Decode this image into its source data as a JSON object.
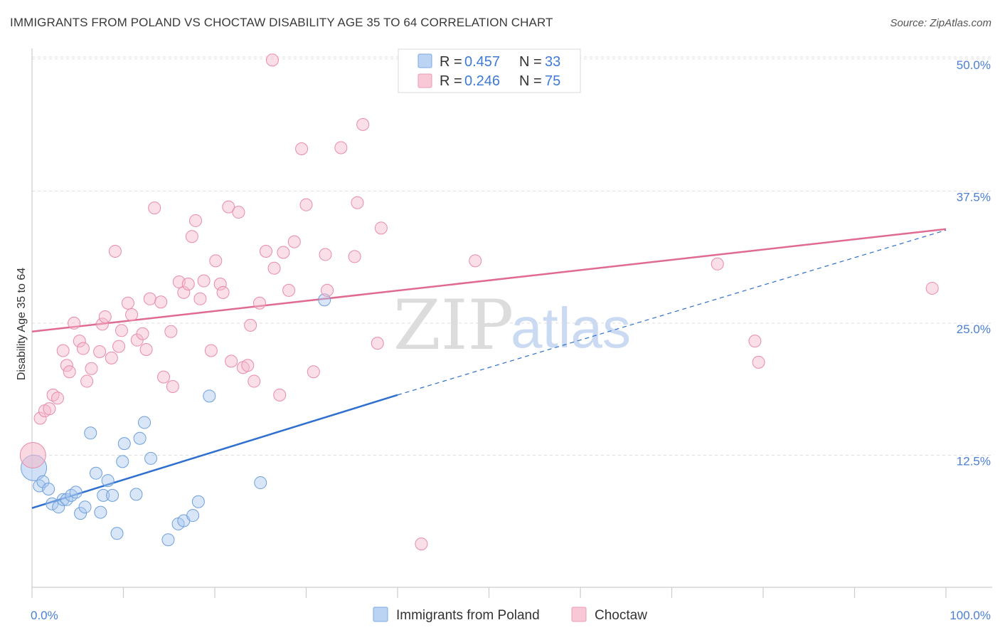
{
  "header": {
    "title": "IMMIGRANTS FROM POLAND VS CHOCTAW DISABILITY AGE 35 TO 64 CORRELATION CHART",
    "source": "Source: ZipAtlas.com"
  },
  "legend_top": {
    "rows": [
      {
        "r_label": "R =",
        "r_value": "0.457",
        "n_label": "N =",
        "n_value": "33",
        "color": "#a9c8f0"
      },
      {
        "r_label": "R =",
        "r_value": "0.246",
        "n_label": "N =",
        "n_value": "75",
        "color": "#f5b8cb"
      }
    ]
  },
  "legend_bottom": {
    "items": [
      {
        "label": "Immigrants from Poland",
        "color": "#a9c8f0"
      },
      {
        "label": "Choctaw",
        "color": "#f5b8cb"
      }
    ]
  },
  "watermark": {
    "zip": "ZIP",
    "atlas": "atlas"
  },
  "chart_data": {
    "type": "scatter",
    "title": "IMMIGRANTS FROM POLAND VS CHOCTAW DISABILITY AGE 35 TO 64 CORRELATION CHART",
    "xlabel": "",
    "ylabel": "Disability Age 35 to 64",
    "xlim": [
      0,
      100
    ],
    "ylim": [
      0,
      51
    ],
    "x_tick_labels": [
      {
        "value": 0,
        "label": "0.0%"
      },
      {
        "value": 100,
        "label": "100.0%"
      }
    ],
    "y_tick_labels": [
      {
        "value": 12.5,
        "label": "12.5%"
      },
      {
        "value": 25.0,
        "label": "25.0%"
      },
      {
        "value": 37.5,
        "label": "37.5%"
      },
      {
        "value": 50.0,
        "label": "50.0%"
      }
    ],
    "grid": true,
    "legend_position": "top-center",
    "series": [
      {
        "name": "Immigrants from Poland",
        "color": "#a9c8f0",
        "stroke": "#6d9fdc",
        "line_color": "#2e6fcf",
        "trend": {
          "x0": 0,
          "y0": 7.5,
          "x1": 40,
          "y1": 18.2,
          "dash_x1": 100,
          "dash_y1": 33.8
        },
        "points": [
          [
            0.2,
            11.3
          ],
          [
            0.8,
            9.6
          ],
          [
            1.2,
            10.0
          ],
          [
            1.8,
            9.3
          ],
          [
            2.2,
            7.9
          ],
          [
            2.9,
            7.6
          ],
          [
            3.4,
            8.3
          ],
          [
            3.8,
            8.3
          ],
          [
            4.3,
            8.7
          ],
          [
            4.8,
            9.0
          ],
          [
            5.3,
            7.0
          ],
          [
            5.8,
            7.6
          ],
          [
            6.4,
            14.6
          ],
          [
            7.0,
            10.8
          ],
          [
            7.5,
            7.1
          ],
          [
            7.8,
            8.7
          ],
          [
            8.3,
            10.1
          ],
          [
            8.8,
            8.7
          ],
          [
            9.3,
            5.1
          ],
          [
            9.9,
            11.9
          ],
          [
            10.1,
            13.6
          ],
          [
            11.4,
            8.8
          ],
          [
            11.8,
            14.1
          ],
          [
            12.3,
            15.6
          ],
          [
            13.0,
            12.2
          ],
          [
            14.9,
            4.5
          ],
          [
            16.0,
            6.0
          ],
          [
            16.6,
            6.3
          ],
          [
            17.6,
            6.8
          ],
          [
            18.2,
            8.1
          ],
          [
            19.4,
            18.1
          ],
          [
            25.0,
            9.9
          ],
          [
            32.0,
            27.2
          ]
        ]
      },
      {
        "name": "Choctaw",
        "color": "#f5b8cb",
        "stroke": "#e98ba9",
        "line_color": "#e06a92",
        "trend": {
          "x0": 0,
          "y0": 24.2,
          "x1": 100,
          "y1": 33.9
        },
        "points": [
          [
            0.1,
            12.5
          ],
          [
            0.9,
            16.0
          ],
          [
            1.4,
            16.7
          ],
          [
            1.9,
            16.9
          ],
          [
            2.3,
            18.2
          ],
          [
            2.8,
            17.9
          ],
          [
            3.4,
            22.4
          ],
          [
            3.8,
            21.0
          ],
          [
            4.1,
            20.4
          ],
          [
            4.6,
            25.0
          ],
          [
            5.2,
            23.3
          ],
          [
            5.6,
            22.6
          ],
          [
            6.0,
            19.5
          ],
          [
            6.5,
            20.7
          ],
          [
            7.4,
            22.3
          ],
          [
            7.7,
            24.9
          ],
          [
            8.0,
            25.6
          ],
          [
            8.7,
            21.7
          ],
          [
            9.1,
            31.8
          ],
          [
            9.5,
            22.8
          ],
          [
            9.8,
            24.3
          ],
          [
            10.5,
            26.9
          ],
          [
            10.9,
            25.8
          ],
          [
            11.5,
            23.4
          ],
          [
            12.1,
            24.0
          ],
          [
            12.5,
            22.5
          ],
          [
            12.9,
            27.3
          ],
          [
            13.4,
            35.9
          ],
          [
            14.1,
            27.0
          ],
          [
            14.4,
            19.9
          ],
          [
            15.2,
            24.2
          ],
          [
            15.4,
            19.0
          ],
          [
            16.1,
            28.9
          ],
          [
            16.6,
            27.9
          ],
          [
            17.1,
            28.7
          ],
          [
            17.5,
            33.2
          ],
          [
            17.9,
            34.7
          ],
          [
            18.4,
            27.3
          ],
          [
            18.8,
            29.0
          ],
          [
            19.6,
            22.4
          ],
          [
            20.1,
            30.9
          ],
          [
            20.6,
            28.7
          ],
          [
            20.9,
            27.9
          ],
          [
            21.5,
            36.0
          ],
          [
            21.8,
            21.4
          ],
          [
            22.6,
            35.5
          ],
          [
            23.1,
            20.8
          ],
          [
            23.6,
            21.0
          ],
          [
            23.9,
            24.8
          ],
          [
            24.3,
            19.5
          ],
          [
            24.9,
            26.9
          ],
          [
            25.6,
            31.8
          ],
          [
            26.5,
            30.2
          ],
          [
            27.1,
            18.2
          ],
          [
            27.5,
            31.7
          ],
          [
            28.1,
            28.1
          ],
          [
            28.7,
            32.7
          ],
          [
            29.5,
            41.5
          ],
          [
            30.0,
            36.2
          ],
          [
            30.8,
            20.4
          ],
          [
            32.1,
            31.5
          ],
          [
            32.3,
            28.1
          ],
          [
            33.8,
            41.6
          ],
          [
            35.3,
            31.3
          ],
          [
            35.6,
            36.4
          ],
          [
            36.2,
            43.8
          ],
          [
            37.8,
            23.1
          ],
          [
            38.2,
            34.0
          ],
          [
            26.3,
            49.9
          ],
          [
            42.6,
            4.1
          ],
          [
            48.5,
            30.9
          ],
          [
            75.0,
            30.6
          ],
          [
            79.1,
            23.3
          ],
          [
            79.5,
            21.3
          ],
          [
            98.5,
            28.3
          ]
        ]
      }
    ]
  }
}
